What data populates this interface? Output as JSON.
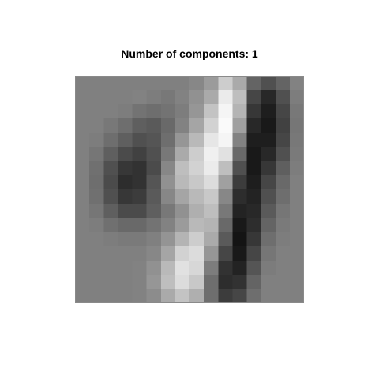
{
  "chart_data": {
    "type": "heatmap",
    "title": "Number of components: 1",
    "xlabel": "",
    "ylabel": "",
    "rows": 16,
    "cols": 16,
    "value_range": [
      0,
      255
    ],
    "colormap": "grayscale",
    "cells": [
      [
        128,
        128,
        128,
        128,
        128,
        128,
        128,
        128,
        135,
        155,
        205,
        170,
        100,
        80,
        100,
        130
      ],
      [
        128,
        128,
        128,
        128,
        130,
        125,
        120,
        130,
        145,
        170,
        235,
        190,
        70,
        40,
        80,
        125
      ],
      [
        128,
        128,
        128,
        125,
        115,
        110,
        115,
        125,
        150,
        195,
        245,
        180,
        55,
        30,
        70,
        120
      ],
      [
        128,
        128,
        120,
        110,
        95,
        90,
        105,
        130,
        165,
        210,
        250,
        160,
        40,
        25,
        65,
        118
      ],
      [
        128,
        125,
        110,
        95,
        80,
        85,
        110,
        150,
        185,
        230,
        245,
        130,
        30,
        30,
        70,
        120
      ],
      [
        128,
        118,
        95,
        75,
        65,
        80,
        120,
        170,
        205,
        240,
        225,
        105,
        25,
        40,
        80,
        122
      ],
      [
        128,
        112,
        80,
        55,
        50,
        75,
        135,
        190,
        210,
        235,
        190,
        80,
        25,
        55,
        95,
        125
      ],
      [
        128,
        110,
        75,
        45,
        50,
        85,
        145,
        185,
        200,
        220,
        160,
        60,
        30,
        70,
        105,
        128
      ],
      [
        128,
        112,
        80,
        55,
        60,
        90,
        135,
        165,
        185,
        200,
        135,
        45,
        35,
        80,
        110,
        128
      ],
      [
        128,
        118,
        95,
        75,
        75,
        95,
        120,
        145,
        175,
        190,
        120,
        35,
        40,
        90,
        118,
        128
      ],
      [
        128,
        125,
        112,
        105,
        105,
        115,
        130,
        155,
        185,
        180,
        105,
        25,
        45,
        100,
        122,
        128
      ],
      [
        128,
        128,
        125,
        122,
        122,
        128,
        148,
        180,
        205,
        170,
        90,
        20,
        55,
        110,
        125,
        128
      ],
      [
        128,
        128,
        128,
        128,
        128,
        135,
        165,
        210,
        220,
        150,
        70,
        25,
        70,
        118,
        128,
        128
      ],
      [
        128,
        128,
        128,
        128,
        130,
        145,
        185,
        225,
        215,
        125,
        50,
        35,
        85,
        124,
        128,
        128
      ],
      [
        128,
        128,
        128,
        128,
        130,
        150,
        190,
        220,
        200,
        110,
        45,
        50,
        100,
        128,
        128,
        128
      ],
      [
        128,
        128,
        128,
        128,
        130,
        140,
        170,
        195,
        175,
        110,
        60,
        70,
        110,
        128,
        128,
        128
      ]
    ],
    "grid": false,
    "legend": "none"
  }
}
